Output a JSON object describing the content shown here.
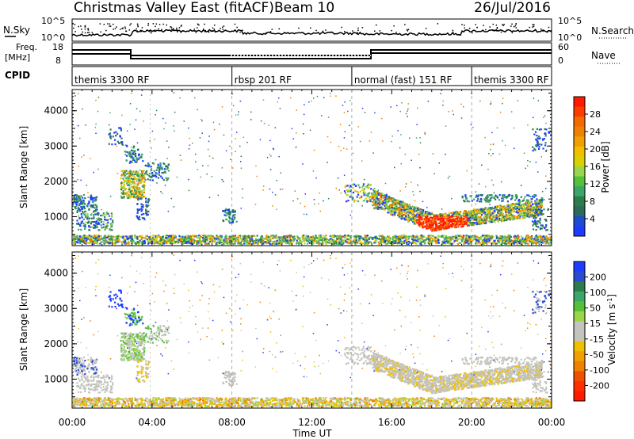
{
  "header": {
    "title": "Christmas Valley East (fitACF)",
    "beam": "Beam 10",
    "date": "26/Jul/2016"
  },
  "top_panel": {
    "left_label": "N.Sky",
    "right_label": "N.Search",
    "left_ticks": [
      "10^5",
      "10^0"
    ],
    "right_ticks": [
      "10^5",
      "10^0"
    ]
  },
  "freq_panel": {
    "left_label": [
      "Freq.",
      "[MHz]"
    ],
    "right_label": "Nave",
    "left_ticks": [
      "18",
      "8"
    ],
    "right_ticks": [
      "60",
      "0"
    ]
  },
  "cpid": {
    "label": "CPID",
    "segments": [
      {
        "name": "themis 3300 RF",
        "start_hour": 0
      },
      {
        "name": "rbsp 201 RF",
        "start_hour": 8
      },
      {
        "name": "normal (fast) 151 RF",
        "start_hour": 14
      },
      {
        "name": "themis 3300 RF",
        "start_hour": 20
      }
    ]
  },
  "colors": {
    "blue": "#1e3cff",
    "dark_green": "#2c7c4c",
    "mid_green": "#3ba56a",
    "green": "#55c03a",
    "light_green": "#9ad64a",
    "yellow": "#f0c000",
    "orange": "#f08000",
    "red": "#ff1a00",
    "gray": "#c4c4be",
    "dark_blue": "#2b4bd0"
  },
  "chart_data": [
    {
      "type": "heatmap",
      "name": "Power",
      "ylabel": "Slant Range [km]",
      "ylim": [
        180,
        4600
      ],
      "yticks": [
        "1000",
        "2000",
        "3000",
        "4000"
      ],
      "xlim": [
        0,
        24
      ],
      "xticks": [
        "00:00",
        "04:00",
        "08:00",
        "12:00",
        "16:00",
        "20:00",
        "00:00"
      ],
      "colorbar": {
        "label": "Power [dB]",
        "ticks": [
          "28",
          "24",
          "20",
          "16",
          "12",
          "8",
          "4"
        ]
      }
    },
    {
      "type": "heatmap",
      "name": "Velocity",
      "ylabel": "Slant Range [km]",
      "ylim": [
        180,
        4600
      ],
      "yticks": [
        "1000",
        "2000",
        "3000",
        "4000"
      ],
      "xlim": [
        0,
        24
      ],
      "xticks": [
        "00:00",
        "04:00",
        "08:00",
        "12:00",
        "16:00",
        "20:00",
        "00:00"
      ],
      "xlabel": "Time UT",
      "colorbar": {
        "label": "Velocity [m s^-1]",
        "ticks": [
          "200",
          "100",
          "50",
          "15",
          "-15",
          "-50",
          "-100",
          "-200"
        ]
      }
    }
  ]
}
